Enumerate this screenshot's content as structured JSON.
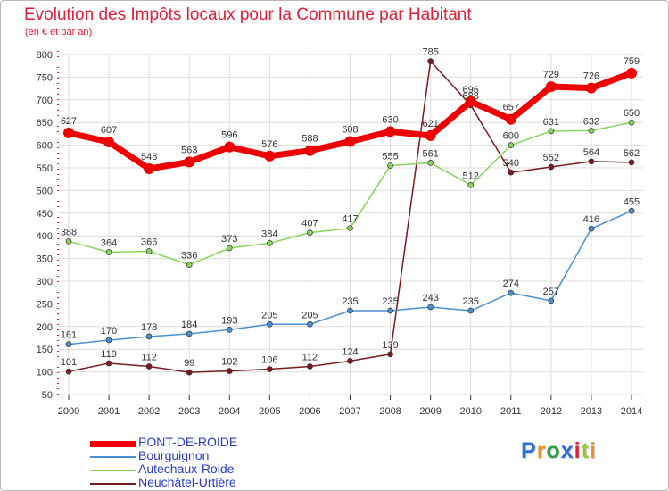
{
  "chart_data": {
    "type": "line",
    "title": "Evolution des Impôts locaux pour la Commune par Habitant",
    "subtitle": "(en € et par an)",
    "xlabel": "",
    "ylabel": "",
    "ylim": [
      50,
      800
    ],
    "yticks": [
      50,
      100,
      150,
      200,
      250,
      300,
      350,
      400,
      450,
      500,
      550,
      600,
      650,
      700,
      750,
      800
    ],
    "categories": [
      "2000",
      "2001",
      "2002",
      "2003",
      "2004",
      "2005",
      "2006",
      "2007",
      "2008",
      "2009",
      "2010",
      "2011",
      "2012",
      "2013",
      "2014"
    ],
    "grid": true,
    "legend_position": "bottom-left",
    "series": [
      {
        "name": "PONT-DE-ROIDE",
        "color": "#ee0000",
        "values": [
          627,
          607,
          548,
          563,
          596,
          576,
          588,
          608,
          630,
          621,
          696,
          657,
          729,
          726,
          759
        ]
      },
      {
        "name": "Bourguignon",
        "color": "#4a90d0",
        "values": [
          161,
          170,
          178,
          184,
          193,
          205,
          205,
          235,
          235,
          243,
          235,
          274,
          257,
          416,
          455
        ]
      },
      {
        "name": "Autechaux-Roide",
        "color": "#88d45a",
        "values": [
          388,
          364,
          366,
          336,
          373,
          384,
          407,
          417,
          555,
          561,
          512,
          600,
          631,
          632,
          650
        ]
      },
      {
        "name": "Neuchâtel-Urtière",
        "color": "#7a1a20",
        "values": [
          101,
          119,
          112,
          99,
          102,
          106,
          112,
          124,
          139,
          785,
          688,
          540,
          552,
          564,
          562
        ]
      }
    ]
  },
  "legend": {
    "items": [
      {
        "label": "PONT-DE-ROIDE"
      },
      {
        "label": "Bourguignon"
      },
      {
        "label": "Autechaux-Roide"
      },
      {
        "label": "Neuchâtel-Urtière"
      }
    ]
  },
  "branding": {
    "logo_text": "Proxiti",
    "letter_colors": [
      "#2a6fd6",
      "#e8902a",
      "#2e9e4a",
      "#2a6fd6",
      "#e0203a",
      "#9ac830",
      "#e8902a"
    ]
  }
}
